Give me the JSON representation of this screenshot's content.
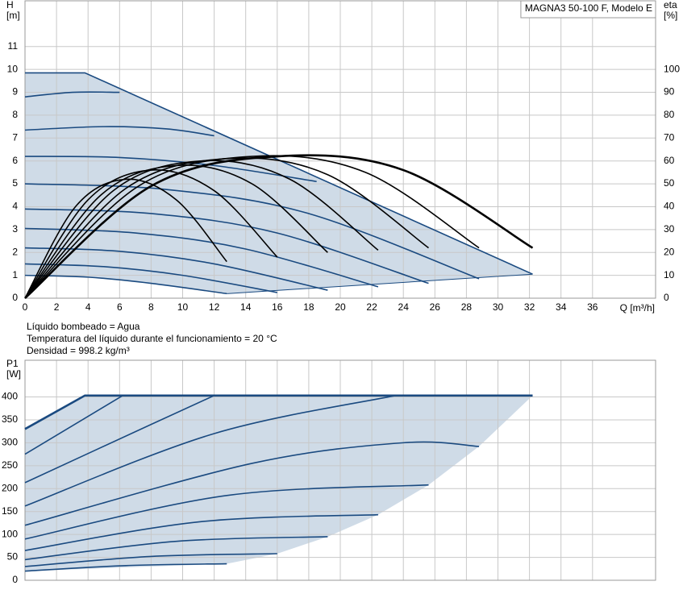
{
  "chart_data": [
    {
      "type": "line",
      "title": "MAGNA3 50-100 F, Modelo E",
      "ylabel": "H",
      "ylabel_unit": "[m]",
      "y2label": "eta",
      "y2label_unit": "[%]",
      "xlabel": "Q [m³/h]",
      "annotations": [
        "Líquido bombeado = Agua",
        "Temperatura del líquido durante el funcionamiento = 20 °C",
        "Densidad = 998.2 kg/m³"
      ],
      "xlim": [
        0,
        40
      ],
      "xticks": [
        0,
        2,
        4,
        6,
        8,
        10,
        12,
        14,
        16,
        18,
        20,
        22,
        24,
        26,
        28,
        30,
        32,
        34,
        36
      ],
      "ylim": [
        0,
        13
      ],
      "yticks": [
        0,
        1,
        2,
        3,
        4,
        5,
        6,
        7,
        8,
        9,
        10,
        11
      ],
      "y2lim": [
        0,
        130
      ],
      "y2ticks": [
        0,
        10,
        20,
        30,
        40,
        50,
        60,
        70,
        80,
        90,
        100
      ],
      "grid": true,
      "area": {
        "color": "#cfdbe7",
        "x": [
          0,
          3.8,
          32.2,
          12.8,
          8,
          4,
          0
        ],
        "values": [
          9.85,
          9.85,
          1.05,
          0.2,
          0.65,
          0.92,
          1.0
        ]
      },
      "series": [
        {
          "color": "#1a4a80",
          "x": [
            0,
            4,
            8,
            12.8
          ],
          "values": [
            1.0,
            0.92,
            0.65,
            0.2
          ]
        },
        {
          "color": "#1a4a80",
          "x": [
            0,
            5,
            10,
            16
          ],
          "values": [
            1.5,
            1.38,
            1.0,
            0.25
          ]
        },
        {
          "color": "#1a4a80",
          "x": [
            0,
            6,
            12,
            19.2
          ],
          "values": [
            2.2,
            2.05,
            1.5,
            0.35
          ]
        },
        {
          "color": "#1a4a80",
          "x": [
            0,
            7,
            14,
            22.4
          ],
          "values": [
            3.05,
            2.85,
            2.15,
            0.5
          ]
        },
        {
          "color": "#1a4a80",
          "x": [
            0,
            8,
            16,
            25.6
          ],
          "values": [
            3.9,
            3.7,
            2.85,
            0.65
          ]
        },
        {
          "color": "#1a4a80",
          "x": [
            0,
            9,
            18,
            28.8
          ],
          "values": [
            5.0,
            4.75,
            3.7,
            0.85
          ]
        },
        {
          "color": "#1a4a80",
          "x": [
            0,
            6,
            12,
            18.5
          ],
          "values": [
            6.2,
            6.15,
            5.8,
            5.1
          ]
        },
        {
          "color": "#1a4a80",
          "x": [
            0,
            5,
            9,
            12
          ],
          "values": [
            7.35,
            7.5,
            7.4,
            7.1
          ]
        },
        {
          "color": "#1a4a80",
          "x": [
            0,
            3,
            6
          ],
          "values": [
            8.8,
            9.0,
            9.0
          ]
        },
        {
          "color": "#1a4a80",
          "x": [
            0,
            3.8,
            32.2
          ],
          "values": [
            9.85,
            9.85,
            1.05
          ],
          "straight": true
        },
        {
          "color": "#1a4a80",
          "x": [
            12.8,
            32.2
          ],
          "values": [
            0.2,
            1.05
          ],
          "straight": true,
          "thin": true
        },
        {
          "color": "#000000",
          "axis": "y2",
          "x": [
            0,
            3.2,
            6.4,
            9.6,
            12.8
          ],
          "values": [
            0,
            40,
            52,
            43,
            16
          ]
        },
        {
          "color": "#000000",
          "axis": "y2",
          "x": [
            0,
            4,
            8,
            12,
            16
          ],
          "values": [
            0,
            43,
            56,
            47,
            18
          ]
        },
        {
          "color": "#000000",
          "axis": "y2",
          "x": [
            0,
            4.8,
            9.6,
            14.4,
            19.2
          ],
          "values": [
            0,
            45,
            58,
            50,
            20
          ]
        },
        {
          "color": "#000000",
          "axis": "y2",
          "x": [
            0,
            5.6,
            11.2,
            16.8,
            22.4
          ],
          "values": [
            0,
            47,
            60,
            52,
            21
          ]
        },
        {
          "color": "#000000",
          "axis": "y2",
          "x": [
            0,
            6.4,
            12.8,
            19.2,
            25.6
          ],
          "values": [
            0,
            48,
            61,
            54,
            22
          ]
        },
        {
          "color": "#000000",
          "axis": "y2",
          "x": [
            0,
            7.2,
            14.4,
            21.6,
            28.8
          ],
          "values": [
            0,
            49,
            62,
            55,
            22
          ]
        },
        {
          "color": "#000000",
          "axis": "y2",
          "x": [
            0,
            8,
            16,
            24,
            32.2
          ],
          "values": [
            0,
            49,
            62,
            56,
            22
          ],
          "thick": true
        }
      ]
    },
    {
      "type": "line",
      "ylabel": "P1",
      "ylabel_unit": "[W]",
      "xlim": [
        0,
        40
      ],
      "ylim": [
        0,
        480
      ],
      "yticks": [
        0,
        50,
        100,
        150,
        200,
        250,
        300,
        350,
        400
      ],
      "grid": true,
      "area": {
        "color": "#cfdbe7",
        "x": [
          0,
          3.8,
          32.2,
          28.8,
          25.6,
          22.4,
          19.2,
          16,
          12.8,
          0
        ],
        "values": [
          330,
          403,
          403,
          292,
          208,
          143,
          95,
          58,
          36,
          20
        ]
      },
      "series": [
        {
          "color": "#1a4a80",
          "x": [
            0,
            6.4,
            12.8
          ],
          "values": [
            20,
            32,
            36
          ]
        },
        {
          "color": "#1a4a80",
          "x": [
            0,
            8,
            16
          ],
          "values": [
            30,
            52,
            58
          ]
        },
        {
          "color": "#1a4a80",
          "x": [
            0,
            9.6,
            19.2
          ],
          "values": [
            45,
            85,
            95
          ]
        },
        {
          "color": "#1a4a80",
          "x": [
            0,
            11.2,
            22.4
          ],
          "values": [
            65,
            128,
            143
          ]
        },
        {
          "color": "#1a4a80",
          "x": [
            0,
            12.8,
            25.6
          ],
          "values": [
            90,
            185,
            208
          ]
        },
        {
          "color": "#1a4a80",
          "x": [
            0,
            14.4,
            24,
            28.8
          ],
          "values": [
            120,
            255,
            300,
            292
          ]
        },
        {
          "color": "#1a4a80",
          "x": [
            0,
            12,
            23.5
          ],
          "values": [
            162,
            320,
            403
          ]
        },
        {
          "color": "#1a4a80",
          "x": [
            0,
            8,
            12
          ],
          "values": [
            213,
            340,
            403
          ]
        },
        {
          "color": "#1a4a80",
          "x": [
            0,
            6.2
          ],
          "values": [
            275,
            403
          ],
          "straight": true
        },
        {
          "color": "#1a4a80",
          "x": [
            0,
            3.8,
            32.2
          ],
          "values": [
            330,
            403,
            403
          ],
          "straight": true,
          "thick": true
        }
      ]
    }
  ]
}
